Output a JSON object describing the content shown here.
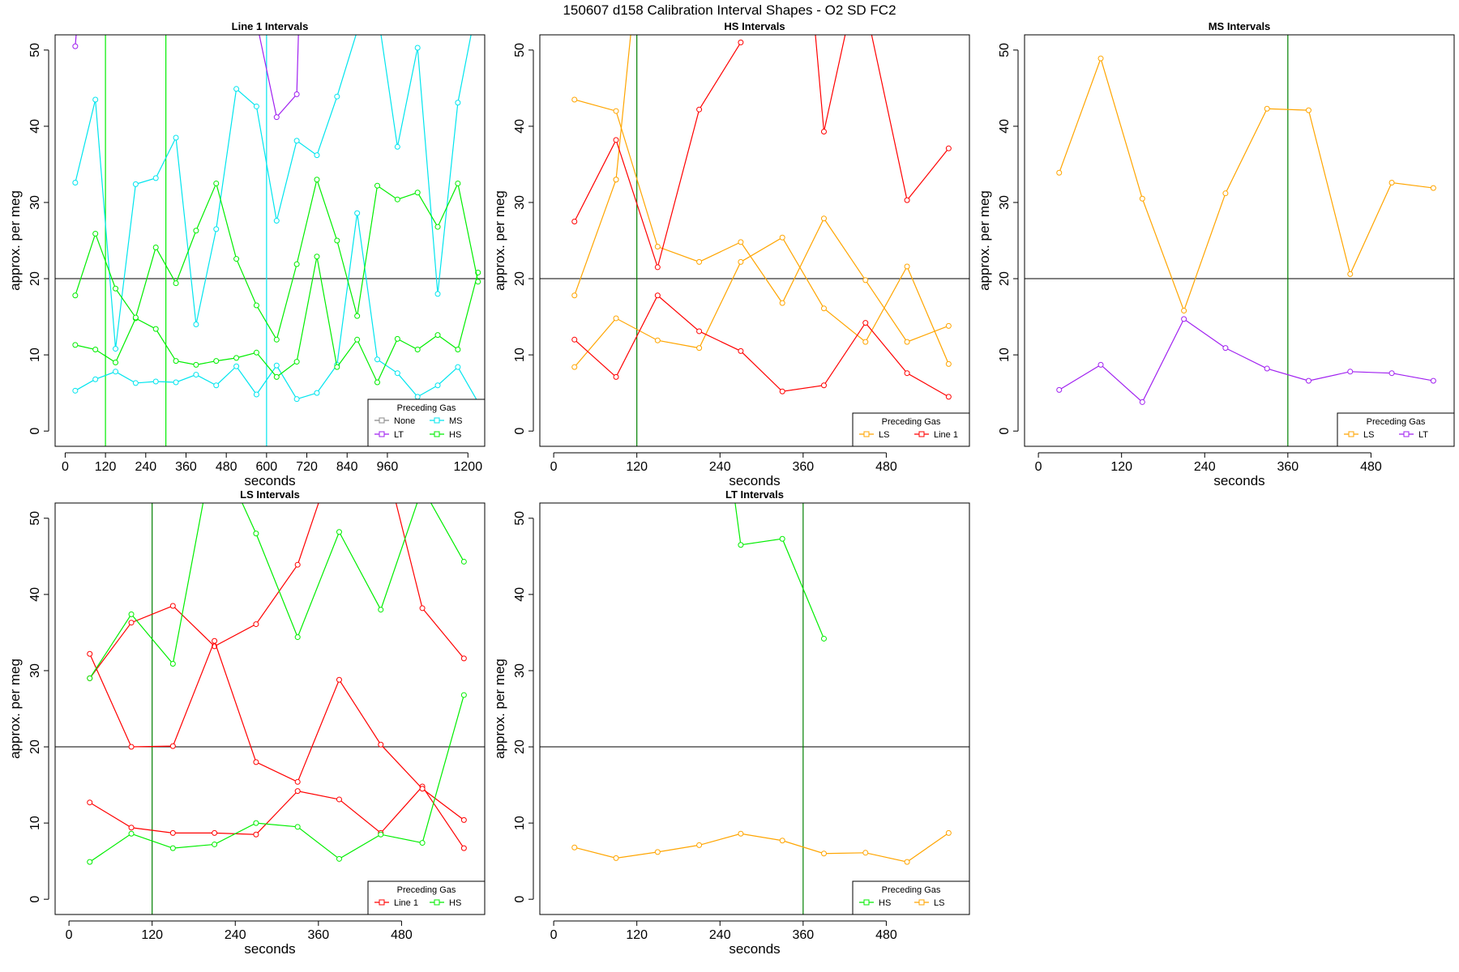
{
  "figure": {
    "title": "150607   d158   Calibration Interval Shapes - O2 SD FC2"
  },
  "colors": {
    "None": "#888888",
    "LT": "#a020f0",
    "MS": "#00e5ee",
    "HS": "#00ee00",
    "LS": "#ffa500",
    "Line 1": "#ff0000",
    "vline": "#008000",
    "hline": "#000000"
  },
  "chart_data": [
    {
      "type": "line",
      "title": "Line 1 Intervals",
      "xlabel": "seconds",
      "ylabel": "approx. per meg",
      "xlim": [
        -30,
        1250
      ],
      "ylim": [
        -2,
        52
      ],
      "xticks": [
        0,
        120,
        240,
        360,
        480,
        600,
        720,
        840,
        960,
        1200
      ],
      "yticks": [
        0,
        10,
        20,
        30,
        40,
        50
      ],
      "hline": 20,
      "vlines": [
        {
          "x": 120,
          "series": "HS"
        },
        {
          "x": 300,
          "series": "HS"
        },
        {
          "x": 600,
          "series": "MS"
        }
      ],
      "legend": {
        "title": "Preceding Gas",
        "position": "bottom-right",
        "entries": [
          "None",
          "LT",
          "MS",
          "HS"
        ]
      },
      "series": [
        {
          "name": "MS",
          "x": [
            30,
            90,
            150,
            210,
            270,
            330,
            390,
            450,
            510,
            570,
            630,
            690,
            750,
            810,
            870,
            930,
            990,
            1050,
            1110,
            1170,
            1230
          ],
          "y": [
            5.3,
            6.8,
            7.8,
            6.3,
            6.5,
            6.4,
            7.4,
            6,
            8.5,
            4.8,
            8.6,
            4.2,
            5,
            8.7,
            28.6,
            9.4,
            7.6,
            4.5,
            6,
            8.4,
            3.8
          ]
        },
        {
          "name": "MS",
          "x": [
            30,
            90,
            150,
            210,
            270,
            330,
            390,
            450,
            510,
            570,
            630,
            690,
            750,
            810,
            870,
            930,
            990,
            1050,
            1110,
            1170,
            1230
          ],
          "y": [
            32.6,
            43.5,
            10.8,
            32.4,
            33.2,
            38.5,
            14,
            26.5,
            44.9,
            42.6,
            27.6,
            38.1,
            36.2,
            43.9,
            52.5,
            55.3,
            37.3,
            50.3,
            18,
            43.1,
            56.7
          ]
        },
        {
          "name": "HS",
          "x": [
            30,
            90,
            150,
            210,
            270,
            330,
            390,
            450,
            510,
            570,
            630,
            690,
            750,
            810,
            870,
            930,
            990,
            1050,
            1110,
            1170,
            1230
          ],
          "y": [
            11.3,
            10.7,
            9,
            14.8,
            13.4,
            9.2,
            8.7,
            9.2,
            9.6,
            10.3,
            7.1,
            9.1,
            22.9,
            8.4,
            12,
            6.4,
            12.1,
            10.7,
            12.6,
            10.7,
            20.8
          ]
        },
        {
          "name": "HS",
          "x": [
            30,
            90,
            150,
            210,
            270,
            330,
            390,
            450,
            510,
            570,
            630,
            690,
            750,
            810,
            870,
            930,
            990,
            1050,
            1110,
            1170,
            1230
          ],
          "y": [
            17.8,
            25.9,
            18.7,
            14.9,
            24.1,
            19.4,
            26.3,
            32.5,
            22.6,
            16.5,
            12,
            21.9,
            33,
            25,
            15.1,
            32.2,
            30.4,
            31.3,
            26.8,
            32.5,
            19.6
          ]
        },
        {
          "name": "LT",
          "x": [
            30,
            40
          ],
          "y": [
            50.5,
            56
          ]
        },
        {
          "name": "LT",
          "x": [
            540,
            630,
            690,
            700
          ],
          "y": [
            60,
            41.2,
            44.2,
            60
          ]
        }
      ]
    },
    {
      "type": "line",
      "title": "HS Intervals",
      "xlabel": "seconds",
      "ylabel": "approx. per meg",
      "xlim": [
        -20,
        600
      ],
      "ylim": [
        -2,
        52
      ],
      "xticks": [
        0,
        120,
        240,
        360,
        480
      ],
      "yticks": [
        0,
        10,
        20,
        30,
        40,
        50
      ],
      "hline": 20,
      "vlines": [
        {
          "x": 120,
          "series": "vline"
        }
      ],
      "legend": {
        "title": "Preceding Gas",
        "position": "bottom-right",
        "entries": [
          "LS",
          "Line 1"
        ]
      },
      "series": [
        {
          "name": "LS",
          "x": [
            30,
            90,
            150,
            210,
            270,
            330,
            390,
            450,
            510,
            570
          ],
          "y": [
            8.4,
            14.8,
            11.9,
            10.9,
            22.2,
            25.4,
            16.1,
            11.7,
            21.6,
            8.8
          ]
        },
        {
          "name": "LS",
          "x": [
            30,
            90,
            150,
            210,
            270,
            330,
            390,
            450,
            510,
            570
          ],
          "y": [
            43.5,
            42,
            24.2,
            22.2,
            24.8,
            16.8,
            27.9,
            19.8,
            11.7,
            13.8
          ]
        },
        {
          "name": "LS",
          "x": [
            30,
            90,
            90,
            120
          ],
          "y": [
            17.8,
            33,
            33,
            60
          ]
        },
        {
          "name": "Line 1",
          "x": [
            30,
            90,
            150,
            210,
            270,
            330,
            390,
            450,
            510,
            570
          ],
          "y": [
            12,
            7.1,
            17.8,
            13.1,
            10.5,
            5.2,
            6,
            14.2,
            7.6,
            4.5
          ]
        },
        {
          "name": "Line 1",
          "x": [
            30,
            90,
            150,
            210,
            270
          ],
          "y": [
            27.5,
            38.2,
            21.5,
            42.2,
            51
          ]
        },
        {
          "name": "Line 1",
          "x": [
            370,
            390,
            440,
            510,
            570
          ],
          "y": [
            60,
            39.3,
            60,
            30.3,
            37.1
          ]
        }
      ]
    },
    {
      "type": "line",
      "title": "MS Intervals",
      "xlabel": "seconds",
      "ylabel": "approx. per meg",
      "xlim": [
        -20,
        600
      ],
      "ylim": [
        -2,
        52
      ],
      "xticks": [
        0,
        120,
        240,
        360,
        480
      ],
      "yticks": [
        0,
        10,
        20,
        30,
        40,
        50
      ],
      "hline": 20,
      "vlines": [
        {
          "x": 360,
          "series": "vline"
        }
      ],
      "legend": {
        "title": "Preceding Gas",
        "position": "bottom-right",
        "entries": [
          "LS",
          "LT"
        ]
      },
      "series": [
        {
          "name": "LS",
          "x": [
            30,
            90,
            150,
            210,
            270,
            330,
            390,
            450,
            510,
            570
          ],
          "y": [
            33.9,
            48.9,
            30.5,
            15.8,
            31.2,
            42.3,
            42.1,
            20.6,
            32.6,
            31.9
          ]
        },
        {
          "name": "LT",
          "x": [
            30,
            90,
            150,
            210,
            270,
            330,
            390,
            450,
            510,
            570
          ],
          "y": [
            5.4,
            8.7,
            3.8,
            14.7,
            10.9,
            8.2,
            6.6,
            7.8,
            7.6,
            6.6
          ]
        }
      ]
    },
    {
      "type": "line",
      "title": "LS Intervals",
      "xlabel": "seconds",
      "ylabel": "approx. per meg",
      "xlim": [
        -20,
        600
      ],
      "ylim": [
        -2,
        52
      ],
      "xticks": [
        0,
        120,
        240,
        360,
        480
      ],
      "yticks": [
        0,
        10,
        20,
        30,
        40,
        50
      ],
      "hline": 20,
      "vlines": [
        {
          "x": 120,
          "series": "vline"
        }
      ],
      "legend": {
        "title": "Preceding Gas",
        "position": "bottom-right",
        "entries": [
          "Line 1",
          "HS"
        ]
      },
      "series": [
        {
          "name": "Line 1",
          "x": [
            30,
            90,
            150,
            210,
            270,
            330,
            390,
            450,
            510,
            570
          ],
          "y": [
            12.7,
            9.4,
            8.7,
            8.7,
            8.5,
            14.2,
            13.1,
            8.7,
            14.8,
            6.7
          ]
        },
        {
          "name": "Line 1",
          "x": [
            30,
            90,
            150,
            210,
            270,
            330,
            390,
            450,
            510,
            570
          ],
          "y": [
            29,
            36.3,
            38.5,
            33.2,
            36.1,
            43.9,
            60,
            60,
            38.2,
            31.6
          ]
        },
        {
          "name": "Line 1",
          "x": [
            30,
            90,
            150,
            210,
            270,
            330,
            390,
            450,
            510,
            570
          ],
          "y": [
            32.2,
            20,
            20.1,
            33.9,
            18,
            15.4,
            28.8,
            20.3,
            14.5,
            10.4
          ]
        },
        {
          "name": "HS",
          "x": [
            30,
            90,
            150,
            210,
            270,
            330,
            390,
            450,
            510,
            570
          ],
          "y": [
            4.9,
            8.6,
            6.7,
            7.2,
            10,
            9.5,
            5.3,
            8.5,
            7.4,
            26.8
          ]
        },
        {
          "name": "HS",
          "x": [
            30,
            90,
            150,
            210,
            270,
            330,
            390,
            450,
            510,
            570
          ],
          "y": [
            29,
            37.4,
            30.9,
            60,
            48,
            34.4,
            48.2,
            38,
            54,
            44.3
          ]
        }
      ]
    },
    {
      "type": "line",
      "title": "LT Intervals",
      "xlabel": "seconds",
      "ylabel": "approx. per meg",
      "xlim": [
        -20,
        600
      ],
      "ylim": [
        -2,
        52
      ],
      "xticks": [
        0,
        120,
        240,
        360,
        480
      ],
      "yticks": [
        0,
        10,
        20,
        30,
        40,
        50
      ],
      "hline": 20,
      "vlines": [
        {
          "x": 360,
          "series": "vline"
        }
      ],
      "legend": {
        "title": "Preceding Gas",
        "position": "bottom-right",
        "entries": [
          "HS",
          "LS"
        ]
      },
      "series": [
        {
          "name": "HS",
          "x": [
            250,
            270,
            330,
            390
          ],
          "y": [
            60,
            46.5,
            47.3,
            34.2
          ]
        },
        {
          "name": "LS",
          "x": [
            30,
            90,
            150,
            210,
            270,
            330,
            390,
            450,
            510,
            570
          ],
          "y": [
            6.8,
            5.4,
            6.2,
            7.1,
            8.6,
            7.7,
            6,
            6.1,
            4.9,
            8.7
          ]
        }
      ]
    }
  ]
}
